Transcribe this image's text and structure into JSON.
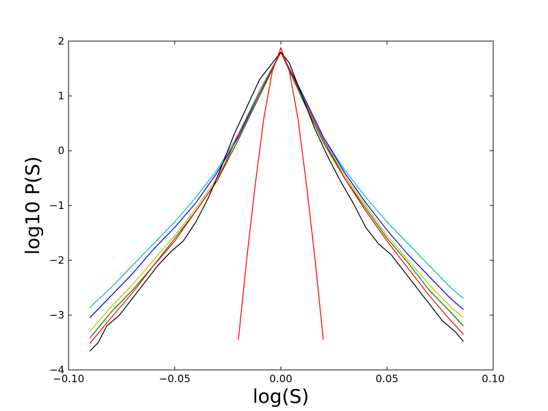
{
  "chart_data": {
    "type": "line",
    "title": "",
    "xlabel": "log(S)",
    "ylabel": "log10 P(S)",
    "xlim": [
      -0.1,
      0.1
    ],
    "ylim": [
      -4,
      2
    ],
    "xticks": [
      -0.1,
      -0.05,
      0.0,
      0.05,
      0.1
    ],
    "xtick_labels": [
      "−0.10",
      "−0.05",
      "0.00",
      "0.05",
      "0.10"
    ],
    "yticks": [
      -4,
      -3,
      -2,
      -1,
      0,
      1,
      2
    ],
    "ytick_labels": [
      "−4",
      "−3",
      "−2",
      "−1",
      "0",
      "1",
      "2"
    ],
    "grid": false,
    "legend": "none",
    "series": [
      {
        "color": "#00bfbf",
        "x": [
          -0.09,
          -0.08,
          -0.07,
          -0.06,
          -0.05,
          -0.04,
          -0.03,
          -0.02,
          -0.01,
          0.0,
          0.01,
          0.02,
          0.03,
          0.04,
          0.05,
          0.06,
          0.07,
          0.08,
          0.086
        ],
        "y": [
          -2.86,
          -2.5,
          -2.1,
          -1.7,
          -1.3,
          -0.85,
          -0.35,
          0.3,
          1.1,
          1.8,
          1.05,
          0.25,
          -0.35,
          -0.85,
          -1.3,
          -1.7,
          -2.1,
          -2.5,
          -2.7
        ]
      },
      {
        "color": "#0000ff",
        "x": [
          -0.09,
          -0.08,
          -0.07,
          -0.06,
          -0.05,
          -0.04,
          -0.03,
          -0.02,
          -0.01,
          0.0,
          0.01,
          0.02,
          0.03,
          0.04,
          0.05,
          0.06,
          0.07,
          0.08,
          0.086
        ],
        "y": [
          -3.05,
          -2.65,
          -2.25,
          -1.8,
          -1.4,
          -0.95,
          -0.4,
          0.25,
          1.05,
          1.8,
          1.05,
          0.25,
          -0.4,
          -0.95,
          -1.45,
          -1.9,
          -2.3,
          -2.7,
          -2.9
        ]
      },
      {
        "color": "#bfbf00",
        "x": [
          -0.09,
          -0.08,
          -0.07,
          -0.06,
          -0.05,
          -0.04,
          -0.03,
          -0.02,
          -0.01,
          0.0,
          0.01,
          0.02,
          0.03,
          0.04,
          0.05,
          0.06,
          0.07,
          0.08,
          0.086
        ],
        "y": [
          -3.3,
          -2.85,
          -2.45,
          -2.0,
          -1.55,
          -1.05,
          -0.5,
          0.2,
          1.0,
          1.8,
          1.0,
          0.2,
          -0.45,
          -1.0,
          -1.55,
          -2.0,
          -2.45,
          -2.85,
          -3.05
        ]
      },
      {
        "color": "#008000",
        "x": [
          -0.09,
          -0.08,
          -0.07,
          -0.06,
          -0.05,
          -0.04,
          -0.03,
          -0.02,
          -0.01,
          0.0,
          0.01,
          0.02,
          0.03,
          0.04,
          0.05,
          0.06,
          0.07,
          0.08,
          0.086
        ],
        "y": [
          -3.42,
          -2.95,
          -2.55,
          -2.1,
          -1.6,
          -1.1,
          -0.55,
          0.2,
          1.0,
          1.8,
          0.95,
          0.15,
          -0.5,
          -1.05,
          -1.6,
          -2.05,
          -2.55,
          -2.95,
          -3.2
        ]
      },
      {
        "color": "#ff0000",
        "x": [
          -0.09,
          -0.08,
          -0.07,
          -0.06,
          -0.05,
          -0.04,
          -0.03,
          -0.02,
          -0.01,
          0.0,
          0.01,
          0.02,
          0.03,
          0.04,
          0.05,
          0.06,
          0.07,
          0.08,
          0.086
        ],
        "y": [
          -3.52,
          -3.05,
          -2.6,
          -2.1,
          -1.65,
          -1.1,
          -0.55,
          0.3,
          1.05,
          1.8,
          1.0,
          0.2,
          -0.5,
          -1.1,
          -1.65,
          -2.15,
          -2.65,
          -3.1,
          -3.35
        ]
      },
      {
        "color": "#000000",
        "x": [
          -0.09,
          -0.086,
          -0.082,
          -0.076,
          -0.07,
          -0.064,
          -0.058,
          -0.052,
          -0.046,
          -0.04,
          -0.034,
          -0.028,
          -0.022,
          -0.016,
          -0.01,
          -0.004,
          0.0,
          0.004,
          0.01,
          0.016,
          0.022,
          0.028,
          0.034,
          0.04,
          0.046,
          0.052,
          0.058,
          0.064,
          0.07,
          0.076,
          0.082,
          0.086
        ],
        "y": [
          -3.66,
          -3.5,
          -3.2,
          -3.0,
          -2.7,
          -2.4,
          -2.1,
          -1.85,
          -1.65,
          -1.3,
          -0.85,
          -0.3,
          0.3,
          0.8,
          1.3,
          1.6,
          1.8,
          1.6,
          1.0,
          0.4,
          -0.1,
          -0.55,
          -0.95,
          -1.4,
          -1.7,
          -1.9,
          -2.2,
          -2.5,
          -2.8,
          -3.1,
          -3.3,
          -3.48
        ]
      },
      {
        "color": "#ff0000",
        "x": [
          -0.02,
          -0.016,
          -0.012,
          -0.008,
          -0.004,
          0.0,
          0.004,
          0.008,
          0.012,
          0.016,
          0.02
        ],
        "y": [
          -3.45,
          -1.95,
          -0.6,
          0.6,
          1.45,
          1.88,
          1.45,
          0.6,
          -0.6,
          -1.95,
          -3.45
        ]
      }
    ]
  }
}
